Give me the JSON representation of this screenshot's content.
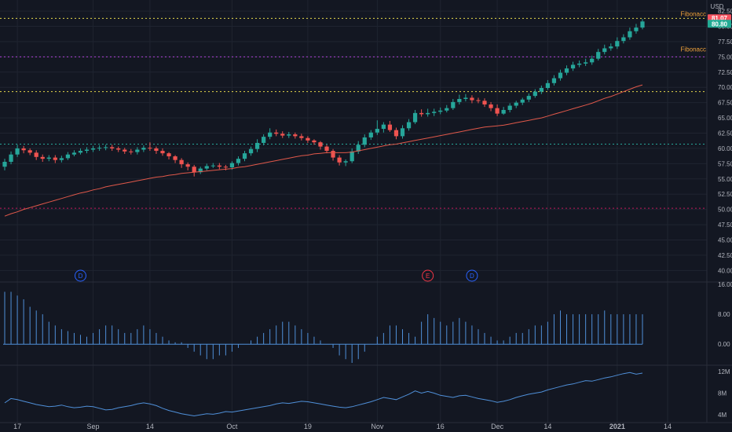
{
  "currency": "USD",
  "price_badges": [
    {
      "value": "81.07",
      "color": "#f7525f"
    },
    {
      "value": "80.80",
      "color": "#22ab94"
    }
  ],
  "fib_labels": [
    "Fibonacc",
    "Fibonacc"
  ],
  "event_markers": [
    {
      "label": "D",
      "color": "#2962ff",
      "x_label": "Aug 29"
    },
    {
      "label": "E",
      "color": "#f23645",
      "x_label": "Nov 15"
    },
    {
      "label": "D",
      "color": "#2962ff",
      "x_label": "Nov 24"
    }
  ],
  "colors": {
    "up": "#26a69a",
    "down": "#ef5350",
    "ma": "#e0584a",
    "volume_bar": "#4f8fd8",
    "line": "#4f8fd8",
    "fib_yellow": "#e6d94c",
    "fib_magenta": "#b040d8",
    "fib_green": "#27a69a",
    "fib_red": "#c2185b"
  },
  "chart_data": [
    {
      "type": "candlestick",
      "x": [
        "Aug 13",
        "Aug 14",
        "Aug 17",
        "Aug 18",
        "Aug 19",
        "Aug 20",
        "Aug 21",
        "Aug 24",
        "Aug 25",
        "Aug 26",
        "Aug 27",
        "Aug 28",
        "Aug 31",
        "Sep 1",
        "Sep 2",
        "Sep 3",
        "Sep 4",
        "Sep 8",
        "Sep 9",
        "Sep 10",
        "Sep 11",
        "Sep 14",
        "Sep 15",
        "Sep 16",
        "Sep 17",
        "Sep 18",
        "Sep 21",
        "Sep 22",
        "Sep 23",
        "Sep 24",
        "Sep 25",
        "Sep 28",
        "Sep 29",
        "Sep 30",
        "Oct 1",
        "Oct 2",
        "Oct 5",
        "Oct 6",
        "Oct 7",
        "Oct 8",
        "Oct 9",
        "Oct 12",
        "Oct 13",
        "Oct 14",
        "Oct 15",
        "Oct 16",
        "Oct 19",
        "Oct 20",
        "Oct 21",
        "Oct 22",
        "Oct 23",
        "Oct 26",
        "Oct 27",
        "Oct 28",
        "Oct 29",
        "Oct 30",
        "Nov 2",
        "Nov 3",
        "Nov 4",
        "Nov 5",
        "Nov 6",
        "Nov 9",
        "Nov 10",
        "Nov 11",
        "Nov 12",
        "Nov 13",
        "Nov 16",
        "Nov 17",
        "Nov 18",
        "Nov 19",
        "Nov 20",
        "Nov 23",
        "Nov 24",
        "Nov 25",
        "Nov 27",
        "Nov 30",
        "Dec 1",
        "Dec 2",
        "Dec 3",
        "Dec 4",
        "Dec 7",
        "Dec 8",
        "Dec 9",
        "Dec 10",
        "Dec 11",
        "Dec 14",
        "Dec 15",
        "Dec 16",
        "Dec 17",
        "Dec 18",
        "Dec 21",
        "Dec 22",
        "Dec 23",
        "Dec 24",
        "Dec 28",
        "Dec 29",
        "Dec 30",
        "Dec 31",
        "Jan 4",
        "Jan 5",
        "Jan 6",
        "Jan 7"
      ],
      "open": [
        57.0,
        57.8,
        59.0,
        60.0,
        59.7,
        59.3,
        58.6,
        58.3,
        58.5,
        58.1,
        58.4,
        59.0,
        59.3,
        59.6,
        59.8,
        60.0,
        60.1,
        60.2,
        60.0,
        59.8,
        59.5,
        59.4,
        59.8,
        60.1,
        60.0,
        59.6,
        59.2,
        58.7,
        58.1,
        57.4,
        57.0,
        56.1,
        56.7,
        57.1,
        57.2,
        57.0,
        56.9,
        57.6,
        58.3,
        59.2,
        59.9,
        60.9,
        61.9,
        62.6,
        62.4,
        62.1,
        62.3,
        62.0,
        61.7,
        61.3,
        61.0,
        60.3,
        59.6,
        58.5,
        57.7,
        57.9,
        59.5,
        60.6,
        61.8,
        62.6,
        63.2,
        63.9,
        63.0,
        62.0,
        63.3,
        64.3,
        65.8,
        65.6,
        65.8,
        66.0,
        66.2,
        66.6,
        67.6,
        68.1,
        68.3,
        67.9,
        67.8,
        67.2,
        66.6,
        65.7,
        66.3,
        67.0,
        67.5,
        68.0,
        68.6,
        69.3,
        69.9,
        70.7,
        71.5,
        72.4,
        73.1,
        73.7,
        73.9,
        74.1,
        74.7,
        75.8,
        76.4,
        76.7,
        77.6,
        78.2,
        79.2,
        79.8
      ],
      "close": [
        57.8,
        59.0,
        60.0,
        59.7,
        59.3,
        58.6,
        58.3,
        58.5,
        58.1,
        58.4,
        59.0,
        59.3,
        59.6,
        59.8,
        60.0,
        60.1,
        60.2,
        60.0,
        59.8,
        59.5,
        59.4,
        59.8,
        60.1,
        60.0,
        59.6,
        59.2,
        58.7,
        58.1,
        57.4,
        57.0,
        56.1,
        56.7,
        57.1,
        57.2,
        57.0,
        56.9,
        57.6,
        58.3,
        59.2,
        59.9,
        60.9,
        61.9,
        62.6,
        62.4,
        62.1,
        62.3,
        62.0,
        61.7,
        61.3,
        61.0,
        60.3,
        59.6,
        58.5,
        57.7,
        57.9,
        59.5,
        60.6,
        61.8,
        62.6,
        63.2,
        63.9,
        63.0,
        62.0,
        63.3,
        64.3,
        65.8,
        65.6,
        65.8,
        66.0,
        66.2,
        66.6,
        67.6,
        68.1,
        68.3,
        67.9,
        67.8,
        67.2,
        66.6,
        65.7,
        66.3,
        67.0,
        67.5,
        68.0,
        68.6,
        69.3,
        69.9,
        70.7,
        71.5,
        72.4,
        73.1,
        73.7,
        73.9,
        74.1,
        74.7,
        75.8,
        76.4,
        76.7,
        77.6,
        78.2,
        79.2,
        79.8,
        80.8
      ],
      "high": [
        58.3,
        59.5,
        60.6,
        60.4,
        60.0,
        59.7,
        59.0,
        58.9,
        58.9,
        58.8,
        59.4,
        59.7,
        60.0,
        60.2,
        60.4,
        60.5,
        60.6,
        60.6,
        60.3,
        60.1,
        59.9,
        60.2,
        60.5,
        61.0,
        60.3,
        60.0,
        59.4,
        58.9,
        58.4,
        57.7,
        57.3,
        57.0,
        57.5,
        57.6,
        57.6,
        57.3,
        57.9,
        58.7,
        59.6,
        60.3,
        61.5,
        62.3,
        63.3,
        63.1,
        62.8,
        62.7,
        62.6,
        62.4,
        62.0,
        61.5,
        61.2,
        60.6,
        59.9,
        58.9,
        58.2,
        60.0,
        61.2,
        62.3,
        63.0,
        64.6,
        64.3,
        64.5,
        63.4,
        63.8,
        64.8,
        66.3,
        66.4,
        66.5,
        66.5,
        66.7,
        67.1,
        68.1,
        68.8,
        68.9,
        68.7,
        68.3,
        68.2,
        67.6,
        67.2,
        66.8,
        67.4,
        67.8,
        68.3,
        69.0,
        69.7,
        70.3,
        71.2,
        72.0,
        72.9,
        73.6,
        74.2,
        74.4,
        74.7,
        75.2,
        76.3,
        77.0,
        77.2,
        78.2,
        78.7,
        79.8,
        80.4,
        81.2
      ],
      "low": [
        56.4,
        57.4,
        58.6,
        59.2,
        58.9,
        58.1,
        57.8,
        57.9,
        57.6,
        57.7,
        58.1,
        58.7,
        59.0,
        59.2,
        59.4,
        59.6,
        59.7,
        59.6,
        59.4,
        59.1,
        59.0,
        59.0,
        59.4,
        59.6,
        59.1,
        58.8,
        58.2,
        57.6,
        56.8,
        56.4,
        55.4,
        55.8,
        56.4,
        56.8,
        56.6,
        56.4,
        56.5,
        57.2,
        57.9,
        58.8,
        59.4,
        60.5,
        61.5,
        62.0,
        61.7,
        61.7,
        61.6,
        61.3,
        60.9,
        60.6,
        59.8,
        59.2,
        58.0,
        57.2,
        57.1,
        57.6,
        59.1,
        60.2,
        61.4,
        62.2,
        62.6,
        62.7,
        61.5,
        61.6,
        62.9,
        64.0,
        65.2,
        65.2,
        65.3,
        65.6,
        65.9,
        66.3,
        67.2,
        67.7,
        67.4,
        67.4,
        66.8,
        66.1,
        65.3,
        65.5,
        65.9,
        66.6,
        67.1,
        67.6,
        68.3,
        68.9,
        69.6,
        70.3,
        71.1,
        72.0,
        72.7,
        73.3,
        73.5,
        73.7,
        74.4,
        75.4,
        76.0,
        76.3,
        77.2,
        77.8,
        78.8,
        79.5
      ],
      "ma_label": "",
      "ma": [
        48.9,
        49.3,
        49.6,
        50.0,
        50.3,
        50.6,
        50.9,
        51.2,
        51.5,
        51.8,
        52.1,
        52.4,
        52.7,
        52.9,
        53.2,
        53.4,
        53.7,
        53.9,
        54.1,
        54.3,
        54.5,
        54.7,
        54.9,
        55.1,
        55.3,
        55.4,
        55.6,
        55.7,
        55.9,
        56.0,
        56.1,
        56.2,
        56.3,
        56.4,
        56.5,
        56.6,
        56.7,
        56.9,
        57.0,
        57.2,
        57.4,
        57.6,
        57.8,
        58.0,
        58.2,
        58.4,
        58.6,
        58.8,
        58.9,
        59.1,
        59.2,
        59.3,
        59.3,
        59.3,
        59.3,
        59.4,
        59.6,
        59.8,
        60.0,
        60.2,
        60.4,
        60.6,
        60.7,
        60.9,
        61.1,
        61.3,
        61.5,
        61.7,
        61.9,
        62.1,
        62.3,
        62.5,
        62.7,
        62.9,
        63.1,
        63.3,
        63.5,
        63.6,
        63.7,
        63.8,
        64.0,
        64.2,
        64.4,
        64.6,
        64.8,
        65.0,
        65.3,
        65.6,
        65.9,
        66.2,
        66.5,
        66.8,
        67.1,
        67.4,
        67.8,
        68.2,
        68.5,
        68.9,
        69.3,
        69.7,
        70.1,
        70.4
      ],
      "last_price": "81.07",
      "price_line": "80.80",
      "fib_levels": [
        81.3,
        75.0,
        69.3,
        60.7,
        50.2
      ],
      "ylim": [
        38.5,
        83.8
      ],
      "y_ticks": [
        "82.50",
        "80.00",
        "77.50",
        "75.00",
        "72.50",
        "70.00",
        "67.50",
        "65.00",
        "62.50",
        "60.00",
        "57.50",
        "55.00",
        "52.50",
        "50.00",
        "47.50",
        "45.00",
        "42.50",
        "40.00"
      ],
      "x_ticks": [
        "17",
        "Sep",
        "14",
        "Oct",
        "19",
        "Nov",
        "16",
        "Dec",
        "14",
        "2021",
        "14"
      ],
      "grid": true
    },
    {
      "type": "bar",
      "values": [
        14,
        14,
        13,
        12,
        10,
        9,
        8,
        6,
        5,
        4,
        3.5,
        3,
        2.5,
        2,
        3,
        4,
        5,
        5,
        4,
        3,
        3,
        4,
        5,
        4,
        3,
        2,
        1,
        0.5,
        0.5,
        -1,
        -2,
        -3,
        -4,
        -4,
        -3,
        -3,
        -2,
        -1,
        0,
        1,
        2,
        3,
        4,
        5,
        6,
        6,
        5,
        4,
        3,
        2,
        1,
        0,
        -1,
        -3,
        -4,
        -5,
        -4,
        -2,
        0,
        2,
        3,
        5,
        5,
        4,
        3,
        2,
        6,
        8,
        7,
        6,
        5,
        6,
        7,
        6,
        5,
        4,
        3,
        2,
        1,
        1,
        2,
        3,
        3,
        4,
        5,
        5,
        6,
        8,
        9,
        8,
        8,
        8,
        8,
        8,
        8,
        9,
        8,
        8,
        8,
        8,
        8,
        8
      ],
      "ylim": [
        -5,
        16
      ],
      "y_ticks": [
        "16.00",
        "8.00",
        "0.00"
      ]
    },
    {
      "type": "line",
      "values": [
        6.2,
        7.0,
        6.8,
        6.5,
        6.2,
        5.9,
        5.7,
        5.5,
        5.6,
        5.8,
        5.5,
        5.3,
        5.4,
        5.6,
        5.5,
        5.2,
        4.9,
        5.0,
        5.3,
        5.5,
        5.7,
        6.0,
        6.2,
        6.0,
        5.7,
        5.2,
        4.8,
        4.5,
        4.2,
        4.0,
        3.8,
        4.0,
        4.2,
        4.1,
        4.3,
        4.6,
        4.5,
        4.7,
        4.9,
        5.1,
        5.3,
        5.5,
        5.7,
        6.0,
        6.2,
        6.1,
        6.3,
        6.5,
        6.4,
        6.2,
        6.0,
        5.8,
        5.6,
        5.4,
        5.3,
        5.5,
        5.8,
        6.1,
        6.4,
        6.8,
        7.2,
        7.0,
        6.8,
        7.3,
        7.8,
        8.4,
        8.0,
        8.3,
        8.0,
        7.6,
        7.4,
        7.2,
        7.5,
        7.6,
        7.3,
        7.0,
        6.8,
        6.6,
        6.3,
        6.5,
        6.8,
        7.2,
        7.5,
        7.8,
        8.0,
        8.2,
        8.6,
        8.9,
        9.2,
        9.5,
        9.7,
        10.0,
        10.3,
        10.2,
        10.5,
        10.8,
        11.0,
        11.3,
        11.6,
        11.8,
        11.5,
        11.7
      ],
      "ylim": [
        3,
        13
      ],
      "y_ticks": [
        "12M",
        "8M",
        "4M"
      ]
    }
  ]
}
